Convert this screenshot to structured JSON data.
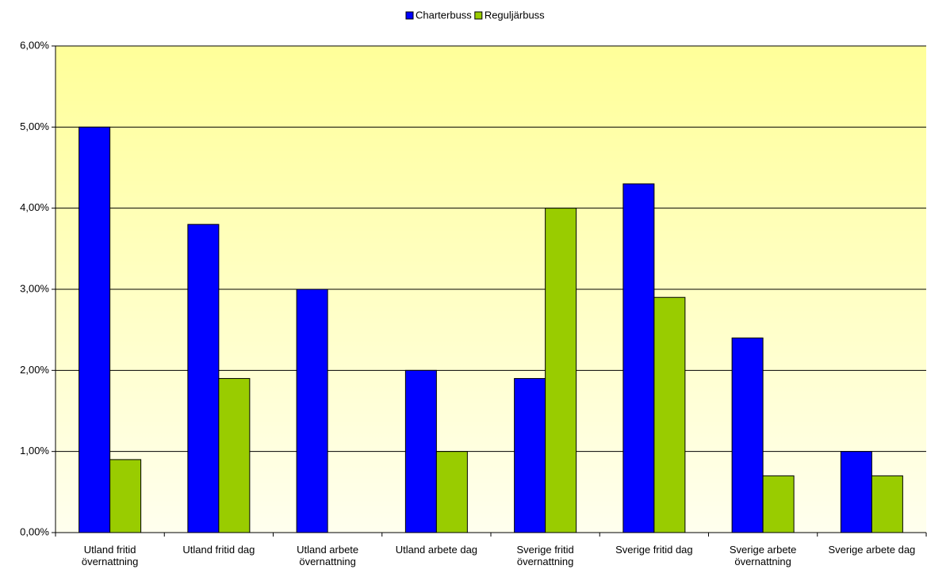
{
  "chart_data": {
    "type": "bar",
    "categories": [
      "Utland fritid övernattning",
      "Utland fritid dag",
      "Utland arbete övernattning",
      "Utland arbete dag",
      "Sverige fritid övernattning",
      "Sverige fritid dag",
      "Sverige arbete övernattning",
      "Sverige arbete dag"
    ],
    "series": [
      {
        "name": "Charterbuss",
        "color": "#0000ff",
        "values": [
          5.0,
          3.8,
          3.0,
          2.0,
          1.9,
          4.3,
          2.4,
          1.0
        ]
      },
      {
        "name": "Reguljärbuss",
        "color": "#99cc00",
        "values": [
          0.9,
          1.9,
          null,
          1.0,
          4.0,
          2.9,
          0.7,
          0.7
        ]
      }
    ],
    "ylim": [
      0,
      6
    ],
    "yticks": [
      {
        "value": 0,
        "label": "0,00%"
      },
      {
        "value": 1,
        "label": "1,00%"
      },
      {
        "value": 2,
        "label": "2,00%"
      },
      {
        "value": 3,
        "label": "3,00%"
      },
      {
        "value": 4,
        "label": "4,00%"
      },
      {
        "value": 5,
        "label": "5,00%"
      },
      {
        "value": 6,
        "label": "6,00%"
      }
    ],
    "grid": true,
    "legend": "top"
  }
}
